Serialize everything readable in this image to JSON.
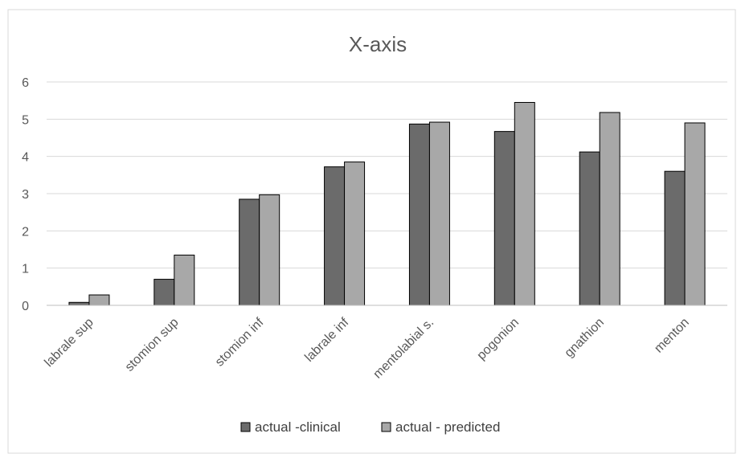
{
  "chart_data": {
    "type": "bar",
    "title": "X-axis",
    "categories": [
      "labrale sup",
      "stomion sup",
      "stomion inf",
      "labrale inf",
      "mentolabial s.",
      "pogonion",
      "gnathion",
      "menton"
    ],
    "series": [
      {
        "name": "actual -clinical",
        "values": [
          0.08,
          0.7,
          2.85,
          3.72,
          4.87,
          4.67,
          4.12,
          3.6
        ],
        "color": "#6b6b6b"
      },
      {
        "name": "actual - predicted",
        "values": [
          0.28,
          1.35,
          2.97,
          3.85,
          4.92,
          5.45,
          5.18,
          4.9
        ],
        "color": "#a8a8a8"
      }
    ],
    "yticks": [
      0,
      1,
      2,
      3,
      4,
      5,
      6
    ],
    "ylim": [
      0,
      6
    ],
    "grid": true,
    "legend": "bottom"
  }
}
